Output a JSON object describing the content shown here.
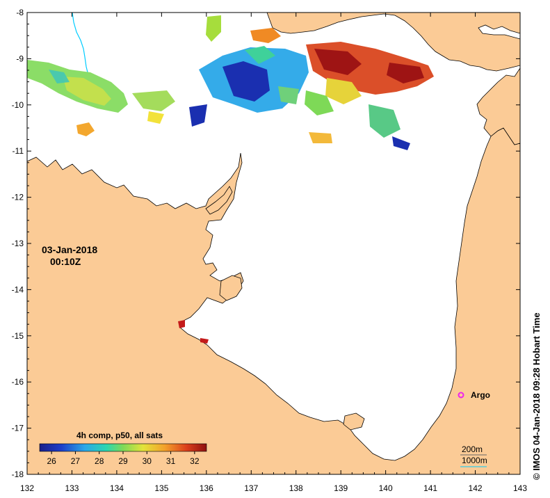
{
  "date_label": "03-Jan-2018",
  "time_label": "00:10Z",
  "axes": {
    "x_ticks": [
      "132",
      "133",
      "134",
      "135",
      "136",
      "137",
      "138",
      "139",
      "140",
      "141",
      "142",
      "143"
    ],
    "y_ticks": [
      "-8",
      "-9",
      "-10",
      "-11",
      "-12",
      "-13",
      "-14",
      "-15",
      "-16",
      "-17",
      "-18"
    ]
  },
  "colorbar": {
    "title": "4h comp, p50, all sats",
    "ticks": [
      "26",
      "27",
      "28",
      "29",
      "30",
      "31",
      "32"
    ]
  },
  "legend": {
    "isobath_200": "200m",
    "isobath_1000": "1000m"
  },
  "marker": {
    "label": "Argo",
    "color": "#ee22ee"
  },
  "credit": "© IMOS 04-Jan-2018 09:28 Hobart Time",
  "colors": {
    "land": "#fbcb96",
    "sea": "#ffffff",
    "river": "#00ccff"
  }
}
